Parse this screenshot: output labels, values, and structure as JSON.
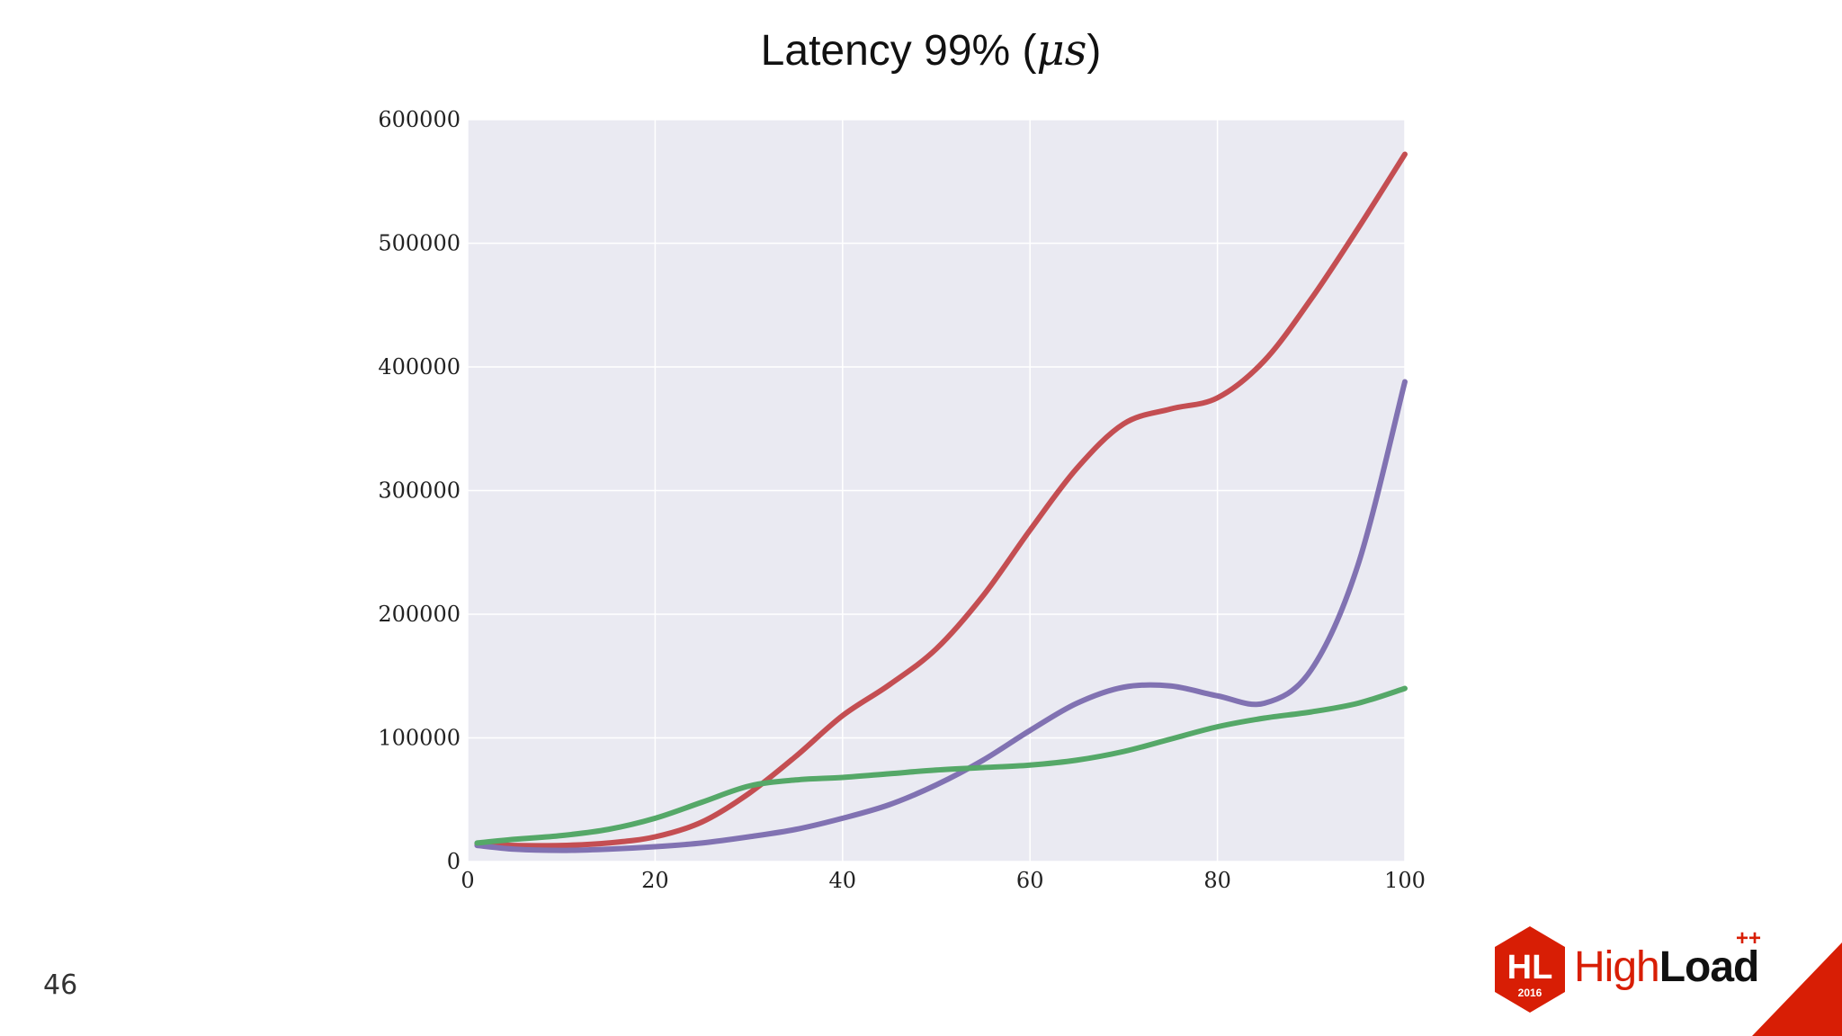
{
  "slide": {
    "title": "Latency 99% (",
    "title_mu": "μs",
    "title_end": ")",
    "page_number": "46",
    "logo": {
      "badge_line1": "HL",
      "badge_line2": "2016",
      "text_light": "High",
      "text_bold": "Load",
      "plus": "++"
    }
  },
  "colors": {
    "plot_bg": "#eaeaf2",
    "grid": "#ffffff",
    "series": [
      "#c44e52",
      "#8172b2",
      "#55a868"
    ],
    "accent": "#d81e05"
  },
  "chart_data": {
    "type": "line",
    "title": "Latency 99% (μs)",
    "xlabel": "",
    "ylabel": "",
    "xlim": [
      0,
      100
    ],
    "ylim": [
      0,
      600000
    ],
    "xticks": [
      0,
      20,
      40,
      60,
      80,
      100
    ],
    "yticks": [
      0,
      100000,
      200000,
      300000,
      400000,
      500000,
      600000
    ],
    "grid": true,
    "series": [
      {
        "x": [
          1,
          5,
          10,
          15,
          20,
          25,
          30,
          35,
          40,
          45,
          50,
          55,
          60,
          65,
          70,
          75,
          80,
          85,
          90,
          95,
          100
        ],
        "values": [
          14000,
          13000,
          13000,
          15000,
          20000,
          32000,
          55000,
          85000,
          118000,
          143000,
          172000,
          215000,
          268000,
          318000,
          354000,
          366000,
          375000,
          405000,
          455000,
          512000,
          572000
        ]
      },
      {
        "x": [
          1,
          5,
          10,
          15,
          20,
          25,
          30,
          35,
          40,
          45,
          50,
          55,
          60,
          65,
          70,
          75,
          80,
          85,
          90,
          95,
          100
        ],
        "values": [
          13000,
          10000,
          9000,
          10000,
          12000,
          15000,
          20000,
          26000,
          35000,
          46000,
          62000,
          82000,
          106000,
          128000,
          141000,
          142000,
          134000,
          128000,
          155000,
          240000,
          388000
        ]
      },
      {
        "x": [
          1,
          5,
          10,
          15,
          20,
          25,
          30,
          35,
          40,
          45,
          50,
          55,
          60,
          65,
          70,
          75,
          80,
          85,
          90,
          95,
          100
        ],
        "values": [
          15000,
          18000,
          21000,
          26000,
          35000,
          48000,
          61000,
          66000,
          68000,
          71000,
          74000,
          76000,
          78000,
          82000,
          89000,
          99000,
          109000,
          116000,
          121000,
          128000,
          140000
        ]
      }
    ]
  }
}
